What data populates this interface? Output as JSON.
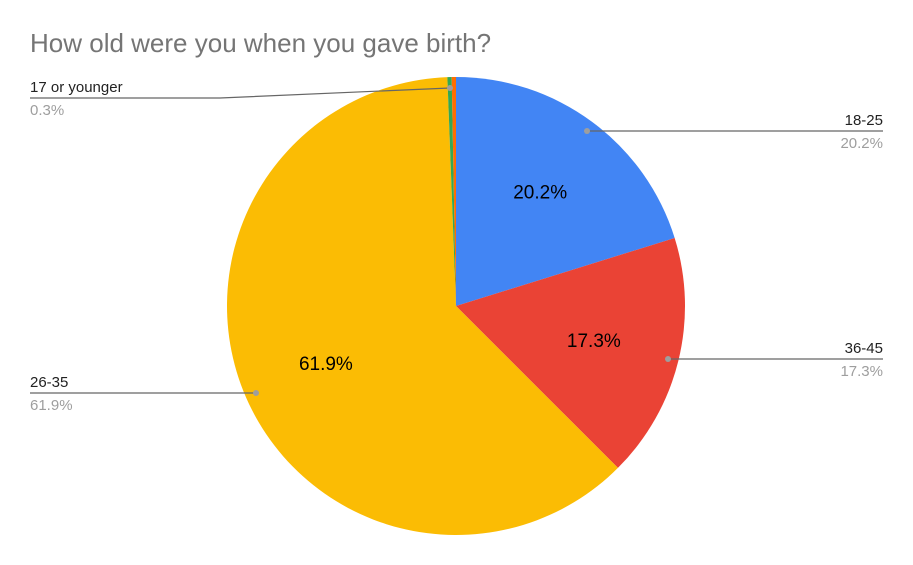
{
  "chart_data": {
    "type": "pie",
    "title": "How old were you when you gave birth?",
    "slices": [
      {
        "label": "18-25",
        "value": 20.2,
        "display": "20.2%",
        "color": "#4285f4",
        "inside_label": true
      },
      {
        "label": "36-45",
        "value": 17.3,
        "display": "17.3%",
        "color": "#ea4335",
        "inside_label": true
      },
      {
        "label": "26-35",
        "value": 61.9,
        "display": "61.9%",
        "color": "#fbbc04",
        "inside_label": true
      },
      {
        "label": "17 or younger",
        "value": 0.3,
        "display": "0.3%",
        "color": "#34a853",
        "inside_label": false
      },
      {
        "label": "",
        "value": 0.3,
        "display": "",
        "color": "#ff6d01",
        "inside_label": false
      }
    ],
    "start_angle": "12 o'clock",
    "direction": "clockwise",
    "legend": "leader labels",
    "external_labels": [
      {
        "name": "17 or younger",
        "pct": "0.3%",
        "side": "left"
      },
      {
        "name": "18-25",
        "pct": "20.2%",
        "side": "right"
      },
      {
        "name": "36-45",
        "pct": "17.3%",
        "side": "right"
      },
      {
        "name": "26-35",
        "pct": "61.9%",
        "side": "left"
      }
    ]
  }
}
